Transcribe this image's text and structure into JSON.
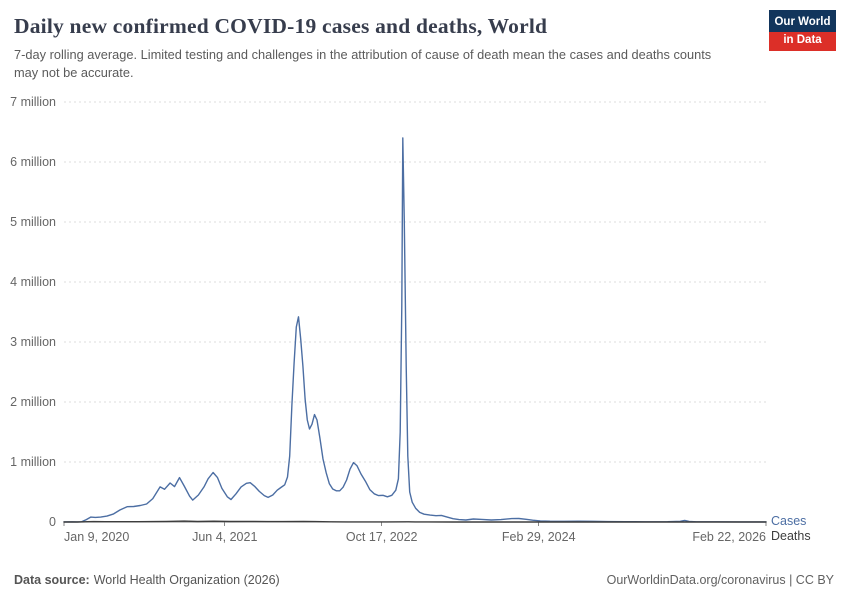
{
  "header": {
    "title": "Daily new confirmed COVID-19 cases and deaths, World",
    "subtitle": "7-day rolling average. Limited testing and challenges in the attribution of cause of death mean the cases and deaths counts may not be accurate.",
    "logo": {
      "line1": "Our World",
      "line2": "in Data"
    }
  },
  "footer": {
    "source_label": "Data source:",
    "source_value": "World Health Organization (2026)",
    "credit": "OurWorldinData.org/coronavirus | CC BY"
  },
  "colors": {
    "title_color": "#373d4d",
    "brand_navy": "#12355c",
    "brand_red": "#dc2f28"
  },
  "chart_data": {
    "type": "line",
    "title": "Daily new confirmed COVID-19 cases and deaths, World",
    "subtitle": "7-day rolling average",
    "x_domain": [
      "2020-01-09",
      "2026-02-22"
    ],
    "y_max": 7,
    "y_unit": "million cases or deaths per day",
    "grid": true,
    "legend_position": "right-of-line-ends",
    "colors": {
      "grid": "#dddddd",
      "axis": "#8a8a8a",
      "tick_text": "#666666"
    },
    "y_ticks": [
      {
        "value": 0,
        "label": "0"
      },
      {
        "value": 1,
        "label": "1 million"
      },
      {
        "value": 2,
        "label": "2 million"
      },
      {
        "value": 3,
        "label": "3 million"
      },
      {
        "value": 4,
        "label": "4 million"
      },
      {
        "value": 5,
        "label": "5 million"
      },
      {
        "value": 6,
        "label": "6 million"
      },
      {
        "value": 7,
        "label": "7 million"
      }
    ],
    "x_ticks": [
      {
        "date": "2020-01-09",
        "label": "Jan 9, 2020",
        "anchor": "start"
      },
      {
        "date": "2021-06-04",
        "label": "Jun 4, 2021",
        "anchor": "middle"
      },
      {
        "date": "2022-10-17",
        "label": "Oct 17, 2022",
        "anchor": "middle"
      },
      {
        "date": "2024-02-29",
        "label": "Feb 29, 2024",
        "anchor": "middle"
      },
      {
        "date": "2026-02-22",
        "label": "Feb 22, 2026",
        "anchor": "end"
      }
    ],
    "series": [
      {
        "name": "Cases",
        "label": "Cases",
        "color": "#4c6ea3",
        "unit": "million per day",
        "points": [
          [
            "2020-01-09",
            0.001
          ],
          [
            "2020-02-04",
            0.003
          ],
          [
            "2020-02-20",
            0.001
          ],
          [
            "2020-03-05",
            0.003
          ],
          [
            "2020-03-20",
            0.04
          ],
          [
            "2020-04-03",
            0.082
          ],
          [
            "2020-04-18",
            0.077
          ],
          [
            "2020-05-05",
            0.082
          ],
          [
            "2020-05-25",
            0.098
          ],
          [
            "2020-06-15",
            0.135
          ],
          [
            "2020-07-05",
            0.2
          ],
          [
            "2020-07-28",
            0.255
          ],
          [
            "2020-08-18",
            0.258
          ],
          [
            "2020-09-08",
            0.275
          ],
          [
            "2020-09-28",
            0.3
          ],
          [
            "2020-10-18",
            0.39
          ],
          [
            "2020-11-10",
            0.585
          ],
          [
            "2020-11-24",
            0.545
          ],
          [
            "2020-12-12",
            0.65
          ],
          [
            "2020-12-26",
            0.59
          ],
          [
            "2021-01-11",
            0.74
          ],
          [
            "2021-01-26",
            0.6
          ],
          [
            "2021-02-12",
            0.43
          ],
          [
            "2021-02-22",
            0.365
          ],
          [
            "2021-03-12",
            0.45
          ],
          [
            "2021-03-30",
            0.585
          ],
          [
            "2021-04-12",
            0.72
          ],
          [
            "2021-04-28",
            0.825
          ],
          [
            "2021-05-12",
            0.74
          ],
          [
            "2021-05-26",
            0.56
          ],
          [
            "2021-06-12",
            0.42
          ],
          [
            "2021-06-24",
            0.375
          ],
          [
            "2021-07-10",
            0.47
          ],
          [
            "2021-07-26",
            0.585
          ],
          [
            "2021-08-12",
            0.645
          ],
          [
            "2021-08-24",
            0.655
          ],
          [
            "2021-09-08",
            0.59
          ],
          [
            "2021-09-22",
            0.51
          ],
          [
            "2021-10-08",
            0.44
          ],
          [
            "2021-10-20",
            0.41
          ],
          [
            "2021-11-04",
            0.45
          ],
          [
            "2021-11-18",
            0.53
          ],
          [
            "2021-11-30",
            0.575
          ],
          [
            "2021-12-12",
            0.62
          ],
          [
            "2021-12-21",
            0.75
          ],
          [
            "2021-12-28",
            1.1
          ],
          [
            "2022-01-04",
            1.95
          ],
          [
            "2022-01-11",
            2.65
          ],
          [
            "2022-01-18",
            3.25
          ],
          [
            "2022-01-25",
            3.42
          ],
          [
            "2022-02-01",
            3.05
          ],
          [
            "2022-02-08",
            2.6
          ],
          [
            "2022-02-15",
            2.05
          ],
          [
            "2022-02-22",
            1.7
          ],
          [
            "2022-03-01",
            1.55
          ],
          [
            "2022-03-09",
            1.63
          ],
          [
            "2022-03-17",
            1.79
          ],
          [
            "2022-03-25",
            1.7
          ],
          [
            "2022-04-03",
            1.4
          ],
          [
            "2022-04-13",
            1.05
          ],
          [
            "2022-04-23",
            0.82
          ],
          [
            "2022-05-03",
            0.64
          ],
          [
            "2022-05-14",
            0.55
          ],
          [
            "2022-05-25",
            0.52
          ],
          [
            "2022-06-05",
            0.52
          ],
          [
            "2022-06-16",
            0.58
          ],
          [
            "2022-06-27",
            0.7
          ],
          [
            "2022-07-08",
            0.88
          ],
          [
            "2022-07-19",
            0.99
          ],
          [
            "2022-07-30",
            0.94
          ],
          [
            "2022-08-12",
            0.8
          ],
          [
            "2022-08-26",
            0.68
          ],
          [
            "2022-09-09",
            0.54
          ],
          [
            "2022-09-23",
            0.47
          ],
          [
            "2022-10-07",
            0.44
          ],
          [
            "2022-10-21",
            0.445
          ],
          [
            "2022-11-04",
            0.42
          ],
          [
            "2022-11-18",
            0.445
          ],
          [
            "2022-12-01",
            0.53
          ],
          [
            "2022-12-09",
            0.72
          ],
          [
            "2022-12-15",
            1.5
          ],
          [
            "2022-12-20",
            3.6
          ],
          [
            "2022-12-23",
            6.4
          ],
          [
            "2022-12-28",
            5.0
          ],
          [
            "2023-01-03",
            2.6
          ],
          [
            "2023-01-08",
            1.1
          ],
          [
            "2023-01-14",
            0.5
          ],
          [
            "2023-01-22",
            0.33
          ],
          [
            "2023-02-02",
            0.23
          ],
          [
            "2023-02-15",
            0.16
          ],
          [
            "2023-03-01",
            0.13
          ],
          [
            "2023-03-20",
            0.115
          ],
          [
            "2023-04-08",
            0.105
          ],
          [
            "2023-04-25",
            0.11
          ],
          [
            "2023-05-12",
            0.085
          ],
          [
            "2023-06-01",
            0.055
          ],
          [
            "2023-06-20",
            0.04
          ],
          [
            "2023-07-12",
            0.033
          ],
          [
            "2023-08-05",
            0.05
          ],
          [
            "2023-09-01",
            0.043
          ],
          [
            "2023-10-01",
            0.034
          ],
          [
            "2023-11-01",
            0.04
          ],
          [
            "2023-12-05",
            0.056
          ],
          [
            "2023-12-28",
            0.058
          ],
          [
            "2024-01-20",
            0.045
          ],
          [
            "2024-02-10",
            0.03
          ],
          [
            "2024-03-05",
            0.018
          ],
          [
            "2024-04-05",
            0.013
          ],
          [
            "2024-05-20",
            0.011
          ],
          [
            "2024-07-05",
            0.014
          ],
          [
            "2024-08-20",
            0.011
          ],
          [
            "2024-10-05",
            0.007
          ],
          [
            "2024-12-01",
            0.005
          ],
          [
            "2025-02-01",
            0.004
          ],
          [
            "2025-04-15",
            0.005
          ],
          [
            "2025-05-25",
            0.012
          ],
          [
            "2025-06-08",
            0.027
          ],
          [
            "2025-06-22",
            0.01
          ],
          [
            "2025-07-15",
            0.004
          ],
          [
            "2025-09-15",
            0.003
          ],
          [
            "2025-12-01",
            0.002
          ],
          [
            "2026-02-22",
            0.002
          ]
        ]
      },
      {
        "name": "Deaths",
        "label": "Deaths",
        "color": "#3d3d3d",
        "unit": "million per day",
        "points": [
          [
            "2020-01-09",
            0.0002
          ],
          [
            "2020-02-20",
            0.0006
          ],
          [
            "2020-04-12",
            0.0072
          ],
          [
            "2020-05-20",
            0.0047
          ],
          [
            "2020-07-10",
            0.005
          ],
          [
            "2020-09-01",
            0.0055
          ],
          [
            "2020-10-15",
            0.0062
          ],
          [
            "2020-12-01",
            0.0105
          ],
          [
            "2021-01-26",
            0.0142
          ],
          [
            "2021-03-10",
            0.0088
          ],
          [
            "2021-04-30",
            0.0131
          ],
          [
            "2021-06-20",
            0.0082
          ],
          [
            "2021-08-20",
            0.0099
          ],
          [
            "2021-10-20",
            0.0071
          ],
          [
            "2021-12-05",
            0.007
          ],
          [
            "2022-02-10",
            0.0103
          ],
          [
            "2022-03-20",
            0.0068
          ],
          [
            "2022-05-05",
            0.0031
          ],
          [
            "2022-07-01",
            0.0021
          ],
          [
            "2022-09-01",
            0.0018
          ],
          [
            "2022-11-01",
            0.0014
          ],
          [
            "2023-01-10",
            0.0037
          ],
          [
            "2023-02-01",
            0.002
          ],
          [
            "2023-03-15",
            0.001
          ],
          [
            "2023-06-01",
            0.0006
          ],
          [
            "2023-12-01",
            0.0004
          ],
          [
            "2024-06-01",
            0.0002
          ],
          [
            "2025-06-01",
            0.0001
          ],
          [
            "2026-02-22",
            0.0001
          ]
        ]
      }
    ]
  }
}
